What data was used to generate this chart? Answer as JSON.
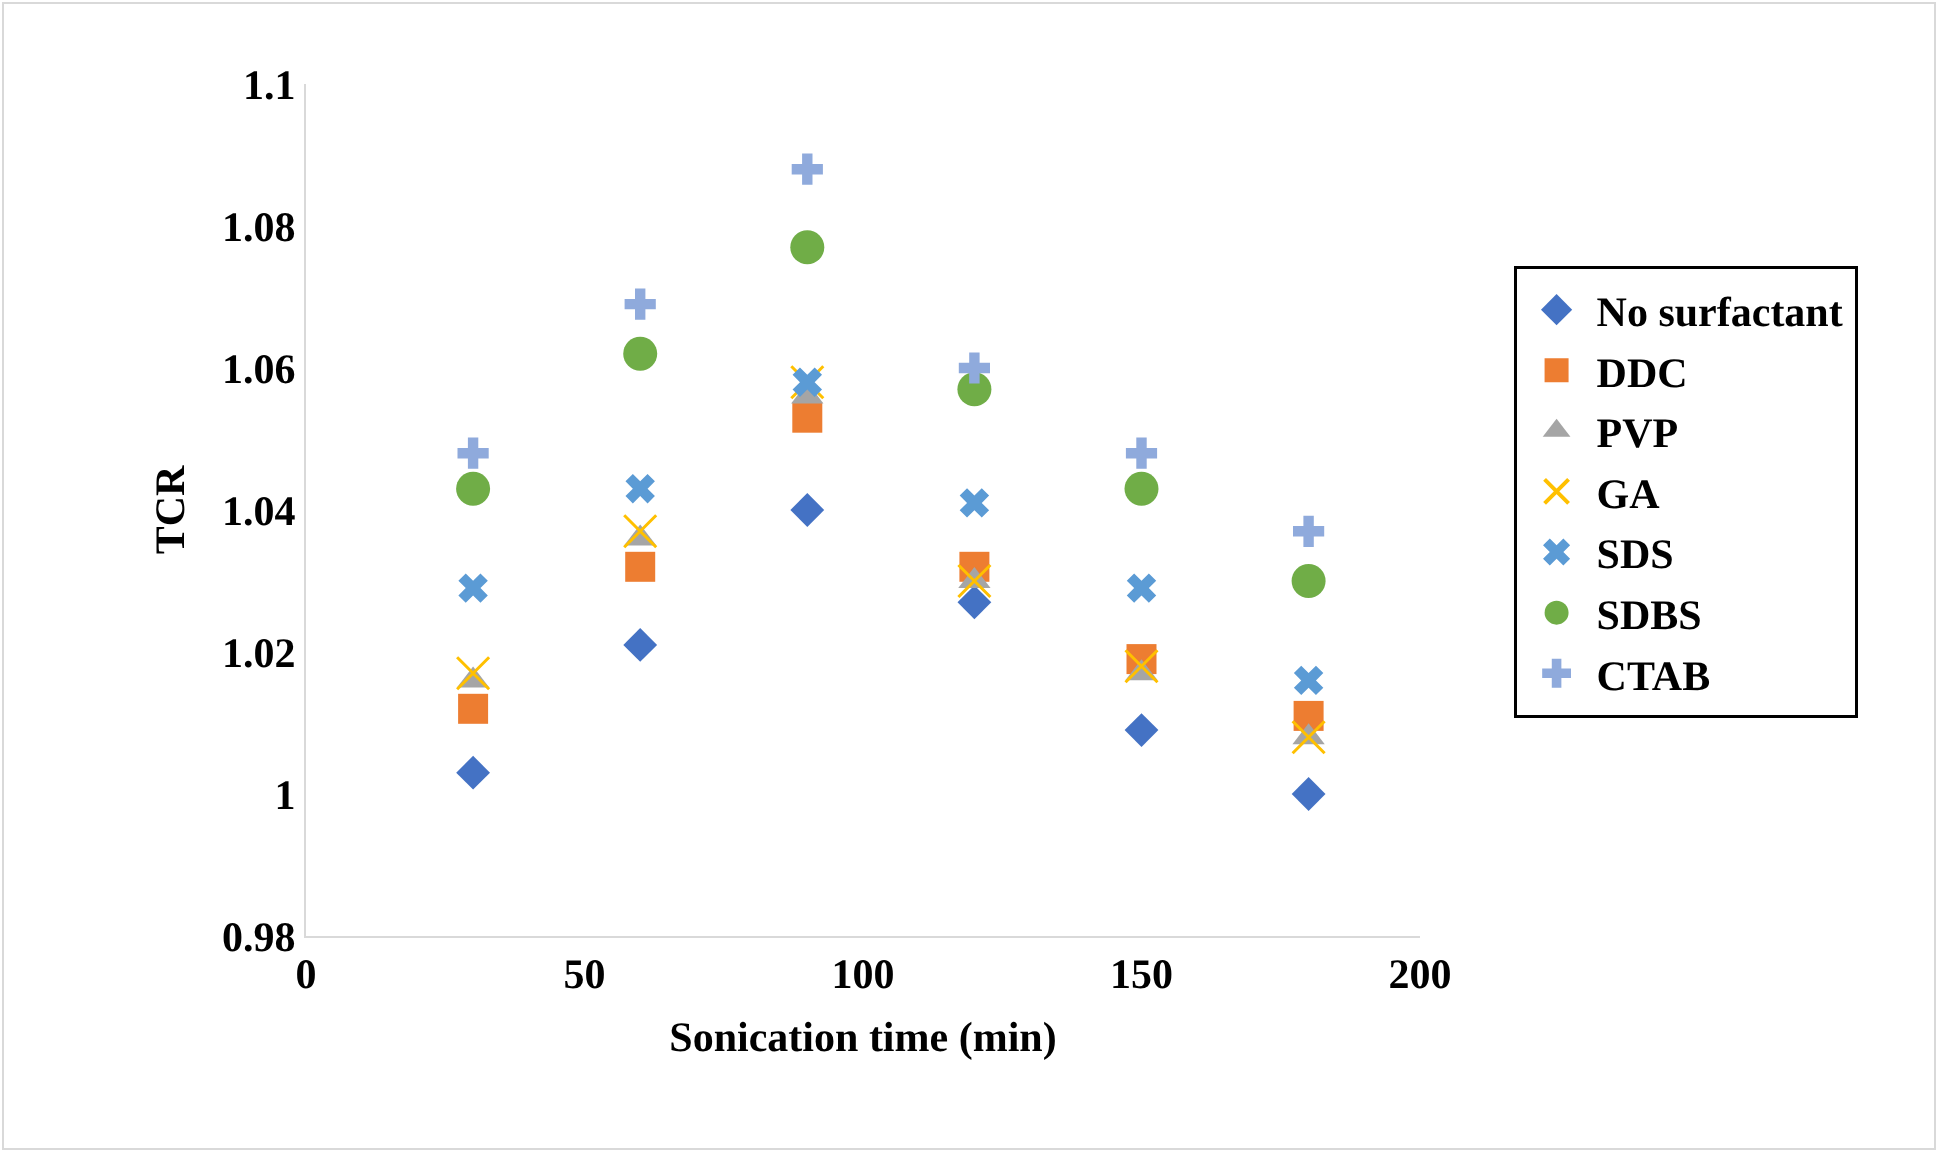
{
  "chart_data": {
    "type": "scatter",
    "xlabel": "Sonication time (min)",
    "ylabel": "TCR",
    "x": [
      30,
      60,
      90,
      120,
      150,
      180
    ],
    "series": [
      {
        "name": "No surfactant",
        "color": "#4472c4",
        "marker": "diamond",
        "values": [
          1.003,
          1.021,
          1.04,
          1.027,
          1.009,
          1.0
        ]
      },
      {
        "name": "DDC",
        "color": "#ed7d31",
        "marker": "square",
        "values": [
          1.012,
          1.032,
          1.053,
          1.032,
          1.019,
          1.011
        ]
      },
      {
        "name": "PVP",
        "color": "#a5a5a5",
        "marker": "triangle",
        "values": [
          1.016,
          1.036,
          1.056,
          1.03,
          1.017,
          1.008
        ]
      },
      {
        "name": "GA",
        "color": "#ffc000",
        "marker": "cross",
        "values": [
          1.017,
          1.037,
          1.058,
          1.03,
          1.018,
          1.008
        ]
      },
      {
        "name": "SDS",
        "color": "#5b9bd5",
        "marker": "cross",
        "values": [
          1.029,
          1.043,
          1.058,
          1.041,
          1.029,
          1.016
        ]
      },
      {
        "name": "SDBS",
        "color": "#70ad47",
        "marker": "circle",
        "values": [
          1.043,
          1.062,
          1.077,
          1.057,
          1.043,
          1.03
        ]
      },
      {
        "name": "CTAB",
        "color": "#8faadc",
        "marker": "cross",
        "values": [
          1.048,
          1.069,
          1.088,
          1.06,
          1.048,
          1.037
        ]
      }
    ],
    "xlim": [
      0,
      200
    ],
    "xticks": [
      0,
      50,
      100,
      150,
      200
    ],
    "ylim": [
      0.98,
      1.1
    ],
    "yticks": [
      0.98,
      1,
      1.02,
      1.04,
      1.06,
      1.08,
      1.1
    ],
    "grid": false,
    "legend": "right"
  }
}
